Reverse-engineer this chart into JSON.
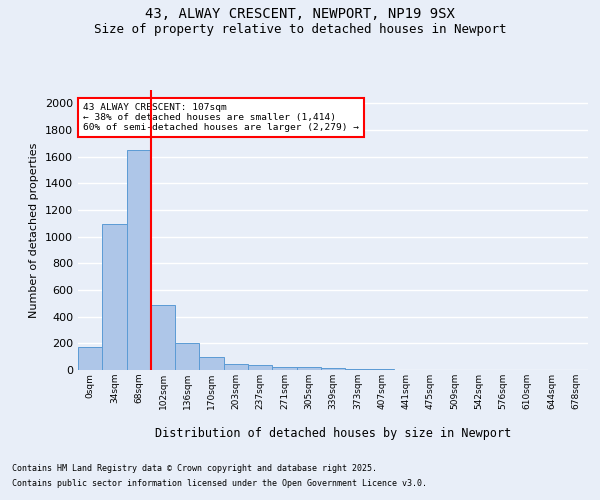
{
  "title1": "43, ALWAY CRESCENT, NEWPORT, NP19 9SX",
  "title2": "Size of property relative to detached houses in Newport",
  "xlabel": "Distribution of detached houses by size in Newport",
  "ylabel": "Number of detached properties",
  "bin_labels": [
    "0sqm",
    "34sqm",
    "68sqm",
    "102sqm",
    "136sqm",
    "170sqm",
    "203sqm",
    "237sqm",
    "271sqm",
    "305sqm",
    "339sqm",
    "373sqm",
    "407sqm",
    "441sqm",
    "475sqm",
    "509sqm",
    "542sqm",
    "576sqm",
    "610sqm",
    "644sqm",
    "678sqm"
  ],
  "bar_heights": [
    175,
    1095,
    1650,
    490,
    200,
    100,
    45,
    40,
    22,
    20,
    15,
    10,
    5,
    0,
    0,
    0,
    0,
    0,
    0,
    0,
    0
  ],
  "bar_color": "#aec6e8",
  "bar_edge_color": "#5b9bd5",
  "vline_x_index": 3,
  "vline_color": "red",
  "ylim": [
    0,
    2100
  ],
  "yticks": [
    0,
    200,
    400,
    600,
    800,
    1000,
    1200,
    1400,
    1600,
    1800,
    2000
  ],
  "annotation_text": "43 ALWAY CRESCENT: 107sqm\n← 38% of detached houses are smaller (1,414)\n60% of semi-detached houses are larger (2,279) →",
  "annotation_box_color": "#ffffff",
  "annotation_border_color": "red",
  "footnote1": "Contains HM Land Registry data © Crown copyright and database right 2025.",
  "footnote2": "Contains public sector information licensed under the Open Government Licence v3.0.",
  "bg_color": "#e8eef8",
  "plot_bg_color": "#e8eef8",
  "title_fontsize": 10,
  "subtitle_fontsize": 9,
  "grid_color": "#ffffff"
}
